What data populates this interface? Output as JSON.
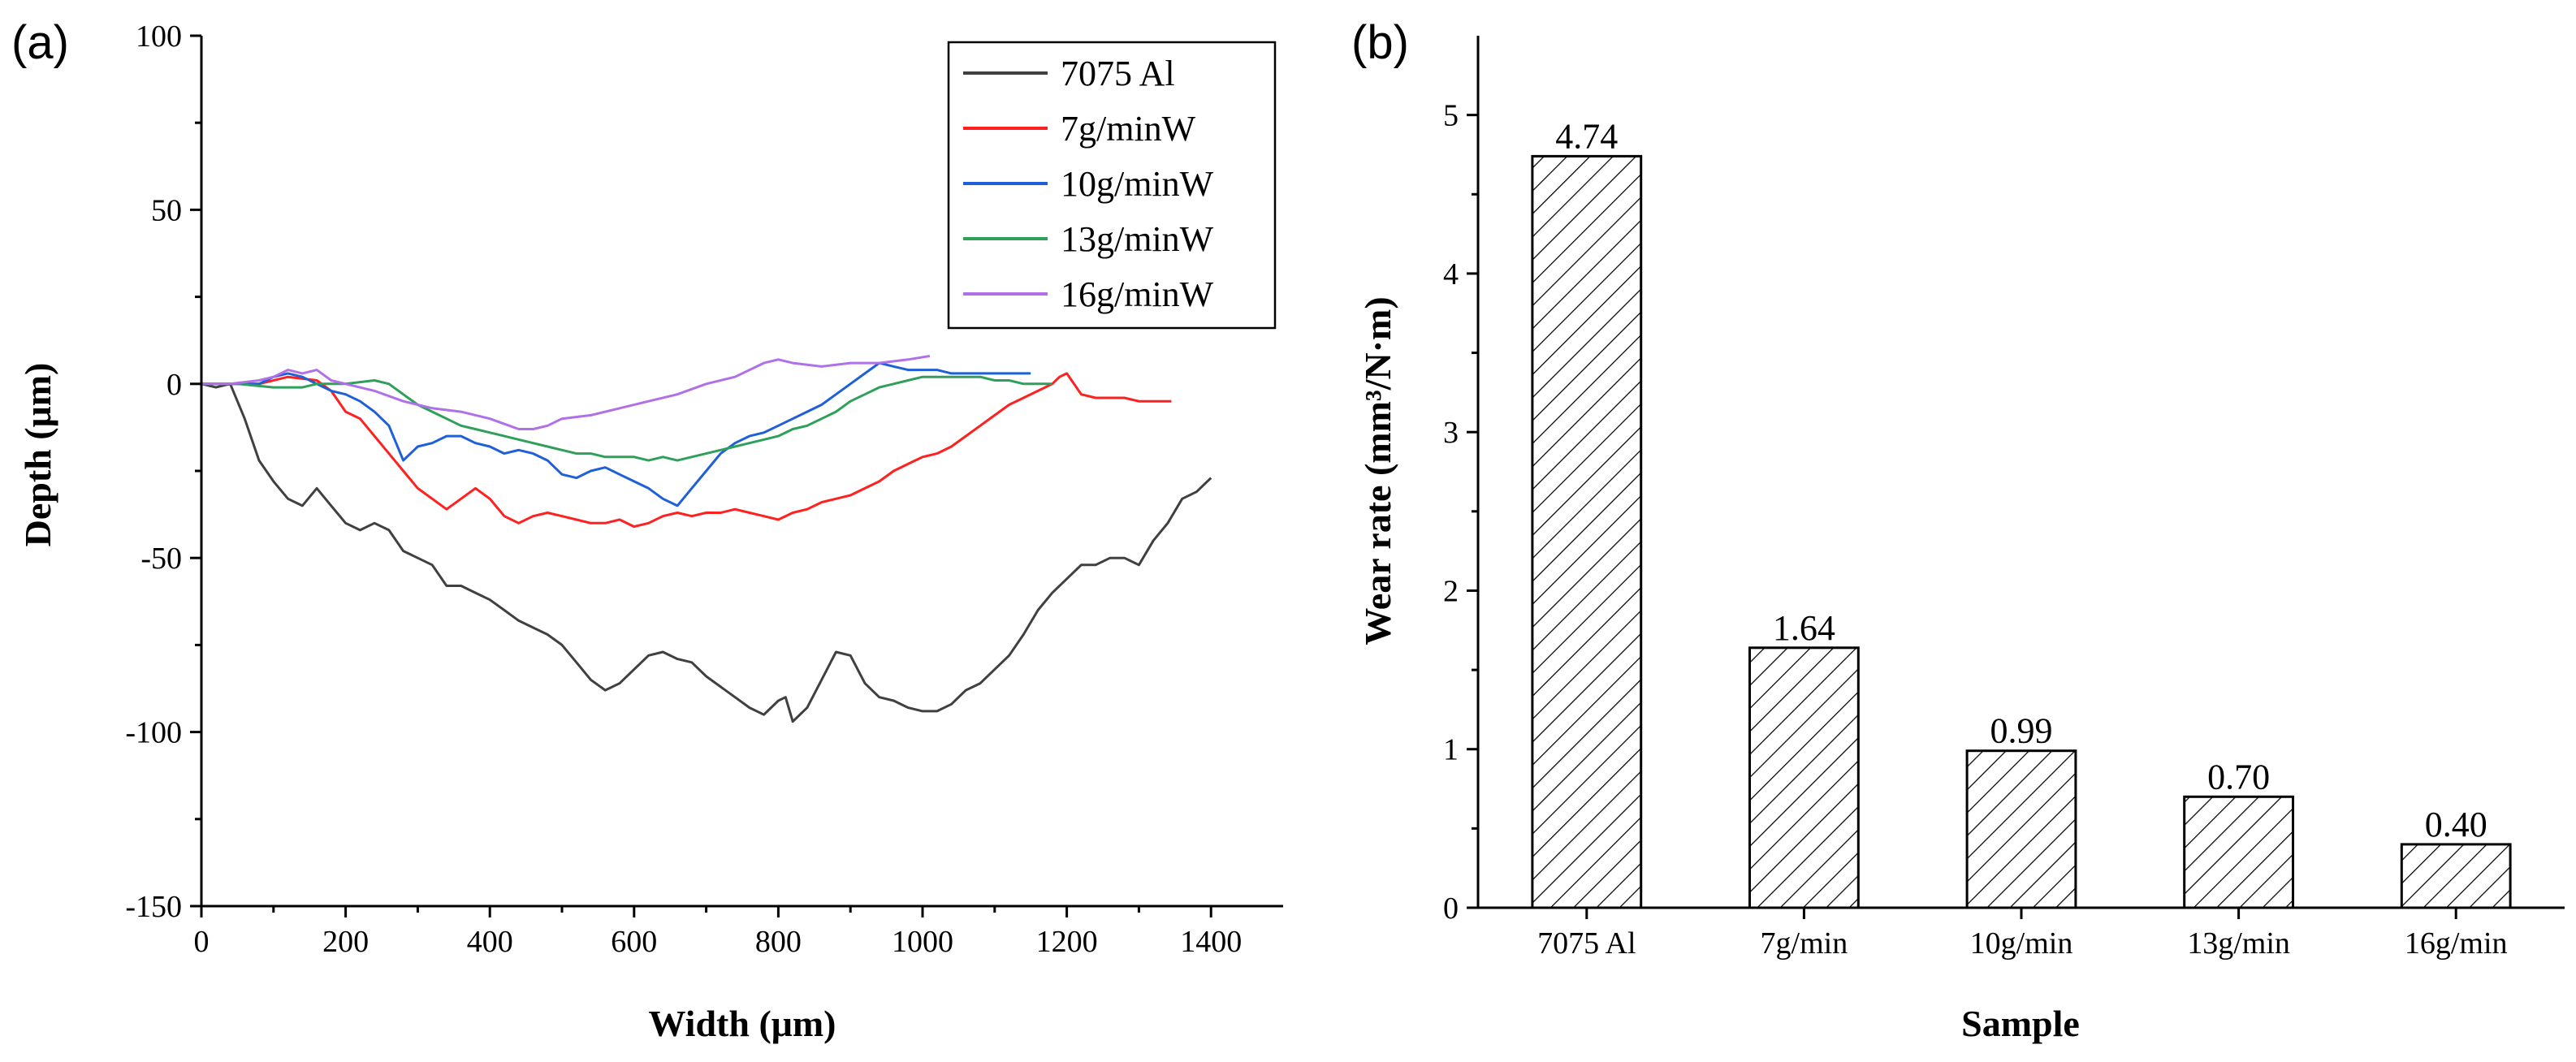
{
  "chart_data": [
    {
      "panel": "(a)",
      "type": "line",
      "xlabel": "Width (μm)",
      "ylabel": "Depth (μm)",
      "xlim": [
        0,
        1500
      ],
      "ylim": [
        -150,
        100
      ],
      "xticks": [
        0,
        200,
        400,
        600,
        800,
        1000,
        1200,
        1400
      ],
      "yticks": [
        -150,
        -100,
        -50,
        0,
        50,
        100
      ],
      "legend_position": "top-right",
      "series": [
        {
          "name": "7075 Al",
          "color": "#404040",
          "x": [
            0,
            20,
            40,
            60,
            80,
            100,
            120,
            140,
            160,
            180,
            200,
            220,
            240,
            260,
            280,
            300,
            320,
            340,
            360,
            380,
            400,
            420,
            440,
            460,
            480,
            500,
            520,
            540,
            560,
            580,
            600,
            620,
            640,
            660,
            680,
            700,
            720,
            740,
            760,
            780,
            800,
            810,
            820,
            840,
            860,
            880,
            900,
            920,
            940,
            960,
            980,
            1000,
            1020,
            1040,
            1060,
            1080,
            1100,
            1120,
            1140,
            1160,
            1180,
            1200,
            1220,
            1240,
            1260,
            1280,
            1300,
            1320,
            1340,
            1360,
            1380,
            1400
          ],
          "y": [
            0,
            -1,
            0,
            -10,
            -22,
            -28,
            -33,
            -35,
            -30,
            -35,
            -40,
            -42,
            -40,
            -42,
            -48,
            -50,
            -52,
            -58,
            -58,
            -60,
            -62,
            -65,
            -68,
            -70,
            -72,
            -75,
            -80,
            -85,
            -88,
            -86,
            -82,
            -78,
            -77,
            -79,
            -80,
            -84,
            -87,
            -90,
            -93,
            -95,
            -91,
            -90,
            -97,
            -93,
            -85,
            -77,
            -78,
            -86,
            -90,
            -91,
            -93,
            -94,
            -94,
            -92,
            -88,
            -86,
            -82,
            -78,
            -72,
            -65,
            -60,
            -56,
            -52,
            -52,
            -50,
            -50,
            -52,
            -45,
            -40,
            -33,
            -31,
            -27
          ]
        },
        {
          "name": "7g/minW",
          "color": "#ff2020",
          "x": [
            0,
            40,
            80,
            120,
            160,
            180,
            200,
            220,
            240,
            260,
            280,
            300,
            320,
            340,
            360,
            380,
            400,
            420,
            440,
            460,
            480,
            500,
            520,
            540,
            560,
            580,
            600,
            620,
            640,
            660,
            680,
            700,
            720,
            740,
            760,
            780,
            800,
            820,
            840,
            860,
            880,
            900,
            920,
            940,
            960,
            980,
            1000,
            1020,
            1040,
            1060,
            1080,
            1100,
            1120,
            1140,
            1160,
            1180,
            1190,
            1200,
            1220,
            1240,
            1260,
            1280,
            1300,
            1320,
            1345
          ],
          "y": [
            0,
            0,
            0,
            2,
            1,
            -2,
            -8,
            -10,
            -15,
            -20,
            -25,
            -30,
            -33,
            -36,
            -33,
            -30,
            -33,
            -38,
            -40,
            -38,
            -37,
            -38,
            -39,
            -40,
            -40,
            -39,
            -41,
            -40,
            -38,
            -37,
            -38,
            -37,
            -37,
            -36,
            -37,
            -38,
            -39,
            -37,
            -36,
            -34,
            -33,
            -32,
            -30,
            -28,
            -25,
            -23,
            -21,
            -20,
            -18,
            -15,
            -12,
            -9,
            -6,
            -4,
            -2,
            0,
            2,
            3,
            -3,
            -4,
            -4,
            -4,
            -5,
            -5,
            -5
          ]
        },
        {
          "name": "10g/minW",
          "color": "#1f5fd8",
          "x": [
            0,
            40,
            80,
            100,
            120,
            140,
            160,
            180,
            200,
            220,
            240,
            260,
            280,
            300,
            320,
            340,
            360,
            380,
            400,
            420,
            440,
            460,
            480,
            500,
            520,
            540,
            560,
            580,
            600,
            620,
            640,
            660,
            680,
            700,
            720,
            740,
            760,
            780,
            800,
            820,
            840,
            860,
            880,
            900,
            920,
            940,
            960,
            980,
            1000,
            1020,
            1040,
            1060,
            1080,
            1100,
            1120,
            1150
          ],
          "y": [
            0,
            0,
            0,
            2,
            3,
            2,
            0,
            -2,
            -3,
            -5,
            -8,
            -12,
            -22,
            -18,
            -17,
            -15,
            -15,
            -17,
            -18,
            -20,
            -19,
            -20,
            -22,
            -26,
            -27,
            -25,
            -24,
            -26,
            -28,
            -30,
            -33,
            -35,
            -30,
            -25,
            -20,
            -17,
            -15,
            -14,
            -12,
            -10,
            -8,
            -6,
            -3,
            0,
            3,
            6,
            5,
            4,
            4,
            4,
            3,
            3,
            3,
            3,
            3,
            3
          ]
        },
        {
          "name": "13g/minW",
          "color": "#2ea05a",
          "x": [
            0,
            50,
            100,
            140,
            160,
            200,
            240,
            260,
            280,
            300,
            320,
            340,
            360,
            380,
            400,
            420,
            440,
            460,
            480,
            500,
            520,
            540,
            560,
            580,
            600,
            620,
            640,
            660,
            680,
            700,
            720,
            740,
            760,
            780,
            800,
            820,
            840,
            860,
            880,
            900,
            920,
            940,
            960,
            980,
            1000,
            1020,
            1040,
            1060,
            1080,
            1100,
            1120,
            1140,
            1160,
            1180
          ],
          "y": [
            0,
            0,
            -1,
            -1,
            0,
            0,
            1,
            0,
            -3,
            -6,
            -8,
            -10,
            -12,
            -13,
            -14,
            -15,
            -16,
            -17,
            -18,
            -19,
            -20,
            -20,
            -21,
            -21,
            -21,
            -22,
            -21,
            -22,
            -21,
            -20,
            -19,
            -18,
            -17,
            -16,
            -15,
            -13,
            -12,
            -10,
            -8,
            -5,
            -3,
            -1,
            0,
            1,
            2,
            2,
            2,
            2,
            2,
            1,
            1,
            0,
            0,
            0
          ]
        },
        {
          "name": "16g/minW",
          "color": "#b070e8",
          "x": [
            0,
            40,
            80,
            100,
            120,
            140,
            160,
            180,
            200,
            240,
            280,
            320,
            360,
            400,
            440,
            460,
            480,
            500,
            540,
            580,
            620,
            660,
            700,
            740,
            780,
            800,
            820,
            860,
            900,
            940,
            980,
            1010
          ],
          "y": [
            0,
            0,
            1,
            2,
            4,
            3,
            4,
            1,
            0,
            -2,
            -5,
            -7,
            -8,
            -10,
            -13,
            -13,
            -12,
            -10,
            -9,
            -7,
            -5,
            -3,
            0,
            2,
            6,
            7,
            6,
            5,
            6,
            6,
            7,
            8
          ]
        }
      ]
    },
    {
      "panel": "(b)",
      "type": "bar",
      "xlabel": "Sample",
      "ylabel": "Wear rate (mm³/N·m)",
      "ylim": [
        0,
        5.5
      ],
      "yticks": [
        0,
        1,
        2,
        3,
        4,
        5
      ],
      "categories": [
        "7075 Al",
        "7g/min",
        "10g/min",
        "13g/min",
        "16g/min"
      ],
      "values": [
        4.74,
        1.64,
        0.99,
        0.7,
        0.4
      ],
      "value_labels": [
        "4.74",
        "1.64",
        "0.99",
        "0.70",
        "0.40"
      ],
      "fill": "hatched diagonal"
    }
  ]
}
